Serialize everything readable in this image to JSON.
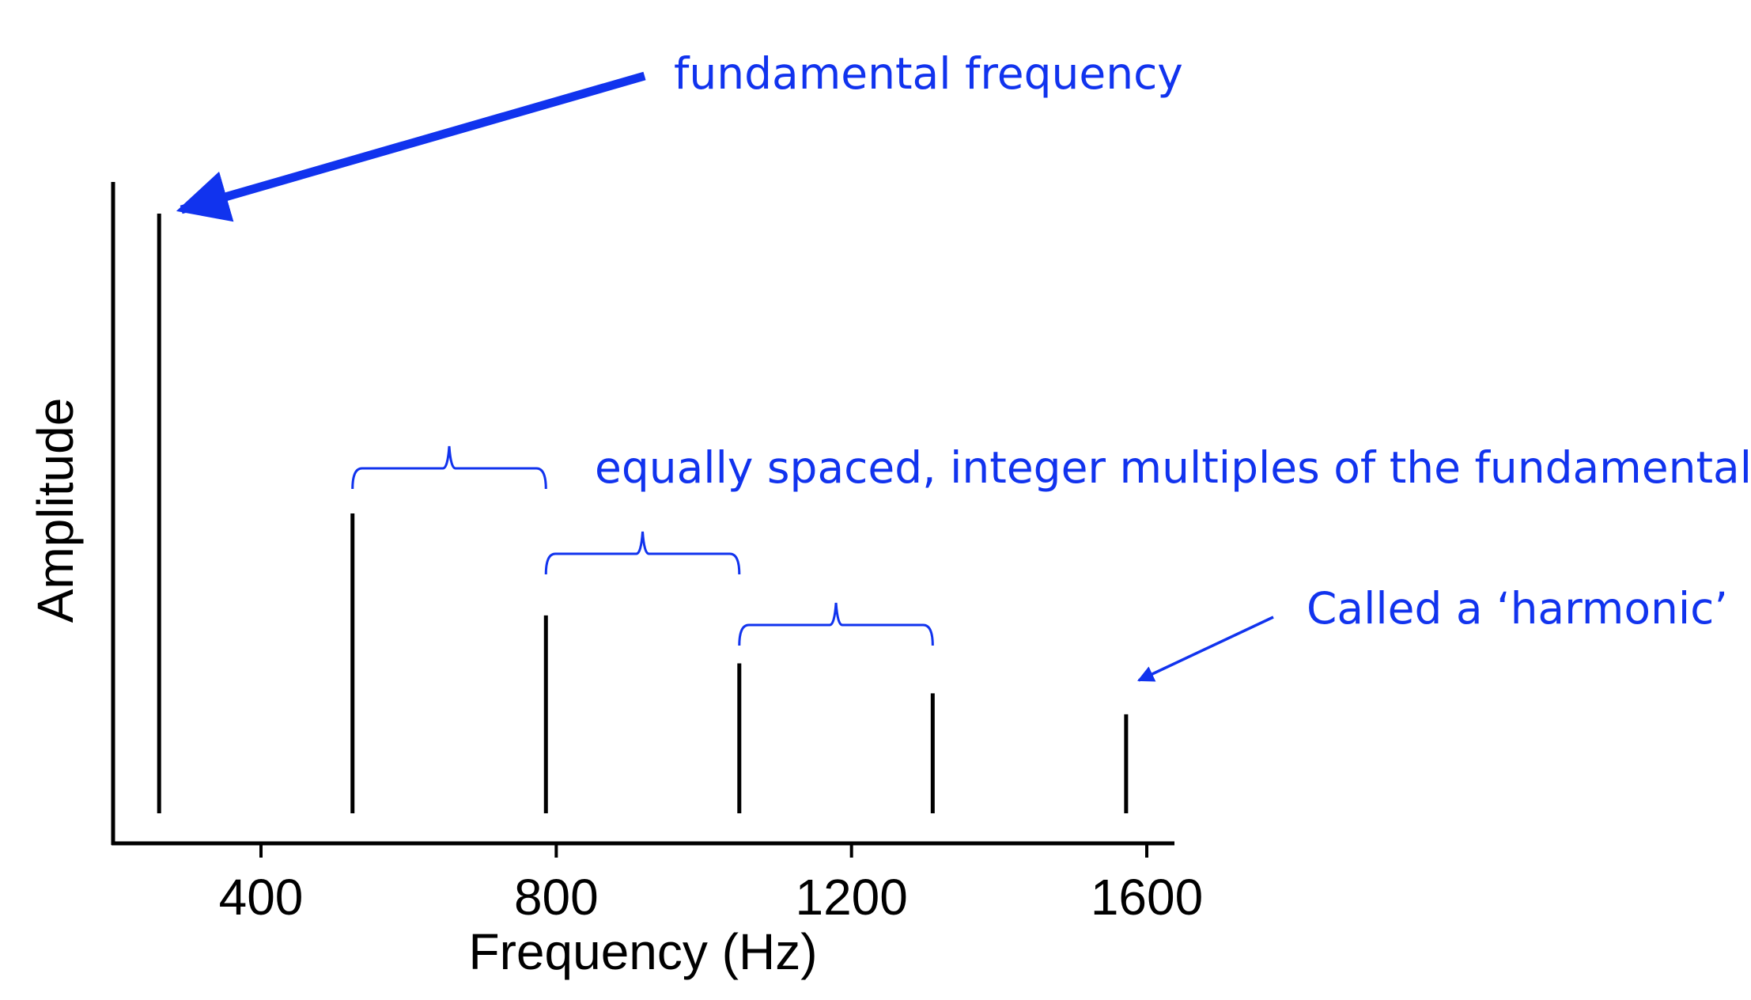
{
  "chart_data": {
    "type": "bar",
    "x": [
      262,
      524,
      786,
      1048,
      1310,
      1572
    ],
    "values": [
      1.0,
      0.5,
      0.33,
      0.25,
      0.2,
      0.165
    ],
    "xlabel": "Frequency (Hz)",
    "ylabel": "Amplitude",
    "xticks": [
      400,
      800,
      1200,
      1600
    ],
    "xlim": [
      200,
      1640
    ],
    "ylim": [
      0,
      1.05
    ],
    "grid": false,
    "annotations": [
      {
        "id": "fundamental",
        "text": "fundamental frequency",
        "target_x": 262
      },
      {
        "id": "spacing",
        "text": "equally spaced, integer multiples of the fundamental",
        "spans": [
          [
            524,
            786
          ],
          [
            786,
            1048
          ],
          [
            1048,
            1310
          ]
        ]
      },
      {
        "id": "harmonic",
        "text": "Called a ‘harmonic’",
        "target_x": 1572
      }
    ]
  },
  "colors": {
    "axis": "#000000",
    "bars": "#000000",
    "annotation": "#1133ee"
  }
}
